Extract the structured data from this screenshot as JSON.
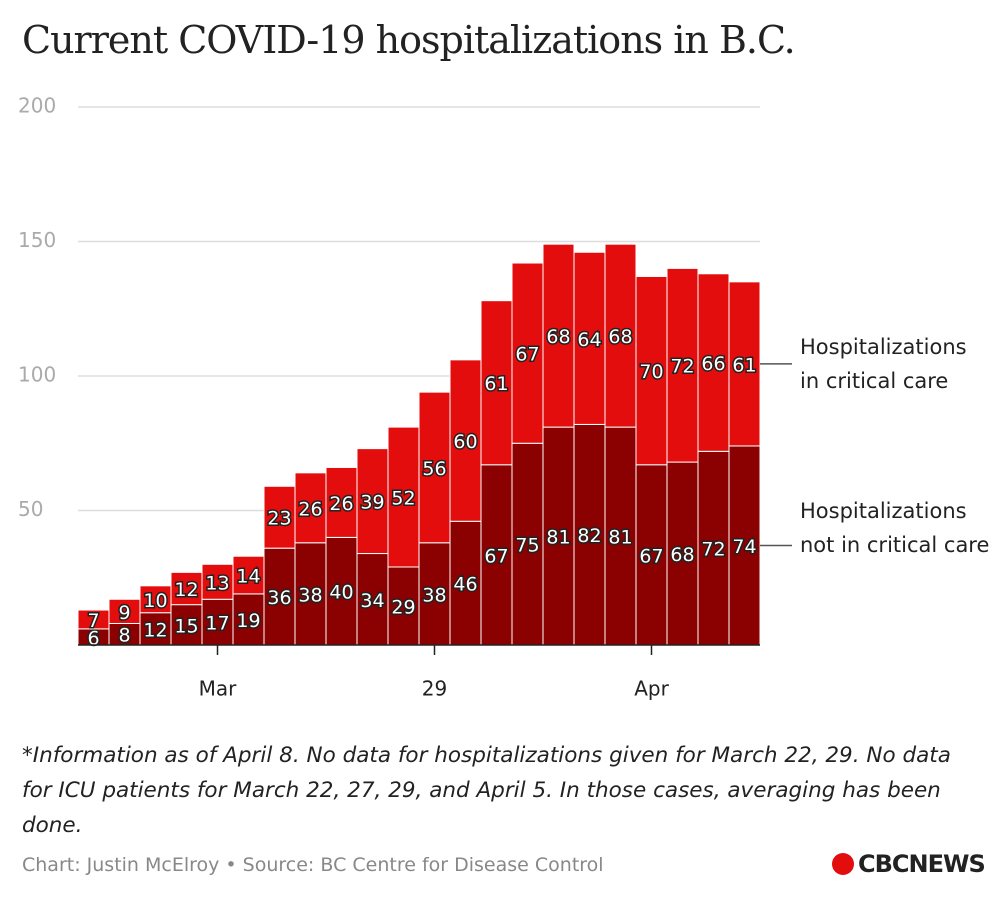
{
  "chart_data": {
    "type": "stacked_bar",
    "title": "Current COVID-19 hospitalizations in B.C.",
    "categories": [
      null,
      null,
      null,
      null,
      "Mar",
      null,
      null,
      null,
      null,
      null,
      null,
      "29",
      null,
      null,
      null,
      null,
      null,
      null,
      "Apr",
      null,
      null,
      null
    ],
    "series": [
      {
        "name": "Hospitalizations not in critical care",
        "color": "#8b0000",
        "values": [
          6,
          8,
          12,
          15,
          17,
          19,
          36,
          38,
          40,
          34,
          29,
          38,
          46,
          67,
          75,
          81,
          82,
          81,
          67,
          68,
          72,
          74
        ]
      },
      {
        "name": "Hospitalizations in critical care",
        "color": "#e30d0d",
        "values": [
          7,
          9,
          10,
          12,
          13,
          14,
          23,
          26,
          26,
          39,
          52,
          56,
          60,
          61,
          67,
          68,
          64,
          68,
          70,
          72,
          66,
          61
        ]
      }
    ],
    "ylim": [
      0,
      200
    ],
    "yticks": [
      50,
      100,
      150,
      200
    ],
    "grid": true,
    "note": "*Information as of April 8. No data for hospitalizations given for March 22, 29. No data for ICU patients for March 22, 27, 29, and April 5. In those cases, averaging has been done.",
    "source": "Chart: Justin McElroy • Source: BC Centre for Disease Control",
    "logo": "CBCNEWS"
  }
}
